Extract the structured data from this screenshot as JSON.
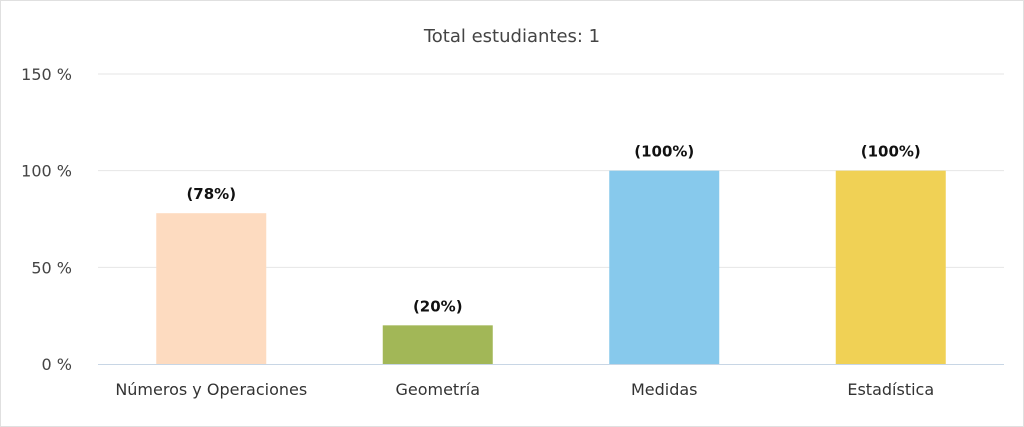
{
  "chart_data": {
    "type": "bar",
    "title": "Total estudiantes: 1",
    "xlabel": "",
    "ylabel": "",
    "categories": [
      "Números y Operaciones",
      "Geometría",
      "Medidas",
      "Estadística"
    ],
    "values": [
      78,
      20,
      100,
      100
    ],
    "data_labels": [
      "(78%)",
      "(20%)",
      "(100%)",
      "(100%)"
    ],
    "colors": [
      "#fddbc0",
      "#a2b757",
      "#87c9ec",
      "#f0d155"
    ],
    "ylim": [
      0,
      150
    ],
    "yticks": [
      0,
      50,
      100,
      150
    ],
    "ytick_labels": [
      "0 %",
      "50 %",
      "100 %",
      "150 %"
    ],
    "grid": true,
    "legend": "none"
  }
}
